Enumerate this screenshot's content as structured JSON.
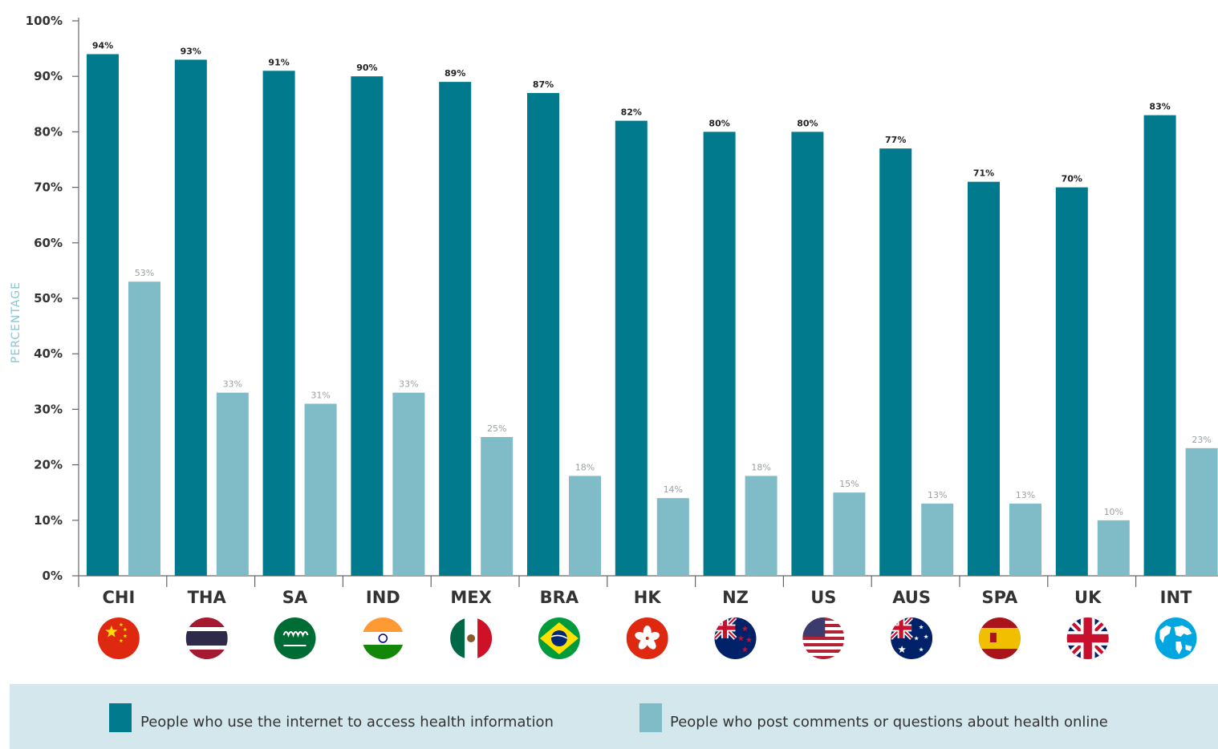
{
  "chart_data": {
    "type": "bar",
    "ylabel": "PERCENTAGE",
    "ylim": [
      0,
      100
    ],
    "yticks": [
      "0%",
      "10%",
      "20%",
      "30%",
      "40%",
      "50%",
      "60%",
      "70%",
      "80%",
      "90%",
      "100%"
    ],
    "categories": [
      "CHI",
      "THA",
      "SA",
      "IND",
      "MEX",
      "BRA",
      "HK",
      "NZ",
      "US",
      "AUS",
      "SPA",
      "UK",
      "INT"
    ],
    "series": [
      {
        "name": "People who use the internet to access health information",
        "color": "#007a8c",
        "values": [
          94,
          93,
          91,
          90,
          89,
          87,
          82,
          80,
          80,
          77,
          71,
          70,
          83
        ],
        "labels": [
          "94%",
          "93%",
          "91%",
          "90%",
          "89%",
          "87%",
          "82%",
          "80%",
          "80%",
          "77%",
          "71%",
          "70%",
          "83%"
        ]
      },
      {
        "name": "People who post comments or questions about health online",
        "color": "#7fbcc7",
        "values": [
          53,
          33,
          31,
          33,
          25,
          18,
          14,
          18,
          15,
          13,
          13,
          10,
          23
        ],
        "labels": [
          "53%",
          "33%",
          "31%",
          "33%",
          "25%",
          "18%",
          "14%",
          "18%",
          "15%",
          "13%",
          "13%",
          "10%",
          "23%"
        ]
      }
    ],
    "flags": [
      "china-flag-icon",
      "thailand-flag-icon",
      "saudi-arabia-flag-icon",
      "india-flag-icon",
      "mexico-flag-icon",
      "brazil-flag-icon",
      "hong-kong-flag-icon",
      "new-zealand-flag-icon",
      "usa-flag-icon",
      "australia-flag-icon",
      "spain-flag-icon",
      "uk-flag-icon",
      "globe-icon"
    ],
    "legend_position": "bottom",
    "legend_background": "#d3e7ec",
    "grid": false
  }
}
